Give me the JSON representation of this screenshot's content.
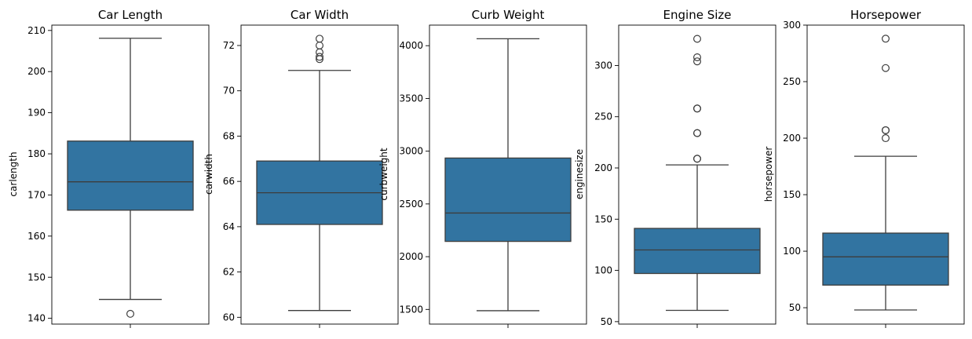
{
  "colors": {
    "box_fill": "#3274a1",
    "line": "#3d3d3d",
    "axes": "#000000",
    "background": "#ffffff"
  },
  "chart_data": [
    {
      "type": "box",
      "title": "Car Length",
      "xlabel": "",
      "ylabel": "carlength",
      "ylim": [
        138.6,
        211.3
      ],
      "yticks": [
        140,
        150,
        160,
        170,
        180,
        190,
        200,
        210
      ],
      "ytick_labels": [
        "140",
        "150",
        "160",
        "170",
        "180",
        "190",
        "200",
        "210"
      ],
      "box": {
        "whisker_low": 144.6,
        "q1": 166.3,
        "median": 173.2,
        "q3": 183.1,
        "whisker_high": 208.1
      },
      "outliers": [
        141.1
      ]
    },
    {
      "type": "box",
      "title": "Car Width",
      "xlabel": "",
      "ylabel": "carwidth",
      "ylim": [
        59.7,
        72.9
      ],
      "yticks": [
        60,
        62,
        64,
        66,
        68,
        70,
        72
      ],
      "ytick_labels": [
        "60",
        "62",
        "64",
        "66",
        "68",
        "70",
        "72"
      ],
      "box": {
        "whisker_low": 60.3,
        "q1": 64.1,
        "median": 65.5,
        "q3": 66.9,
        "whisker_high": 70.9
      },
      "outliers": [
        71.4,
        71.5,
        71.7,
        72.0,
        72.3
      ]
    },
    {
      "type": "box",
      "title": "Curb Weight",
      "xlabel": "",
      "ylabel": "curbweight",
      "ylim": [
        1361,
        4195
      ],
      "yticks": [
        1500,
        2000,
        2500,
        3000,
        3500,
        4000
      ],
      "ytick_labels": [
        "1500",
        "2000",
        "2500",
        "3000",
        "3500",
        "4000"
      ],
      "box": {
        "whisker_low": 1488,
        "q1": 2145,
        "median": 2414,
        "q3": 2935,
        "whisker_high": 4066
      },
      "outliers": []
    },
    {
      "type": "box",
      "title": "Engine Size",
      "xlabel": "",
      "ylabel": "enginesize",
      "ylim": [
        47.6,
        339.4
      ],
      "yticks": [
        50,
        100,
        150,
        200,
        250,
        300
      ],
      "ytick_labels": [
        "50",
        "100",
        "150",
        "200",
        "250",
        "300"
      ],
      "box": {
        "whisker_low": 61,
        "q1": 97,
        "median": 120,
        "q3": 141,
        "whisker_high": 203
      },
      "outliers": [
        209,
        209,
        234,
        234,
        258,
        258,
        304,
        308,
        326
      ]
    },
    {
      "type": "box",
      "title": "Horsepower",
      "xlabel": "",
      "ylabel": "horsepower",
      "ylim": [
        35.5,
        300
      ],
      "yticks": [
        50,
        100,
        150,
        200,
        250,
        300
      ],
      "ytick_labels": [
        "50",
        "100",
        "150",
        "200",
        "250",
        "300"
      ],
      "box": {
        "whisker_low": 48,
        "q1": 70,
        "median": 95,
        "q3": 116,
        "whisker_high": 184
      },
      "outliers": [
        200,
        207,
        207,
        262,
        288
      ]
    }
  ]
}
